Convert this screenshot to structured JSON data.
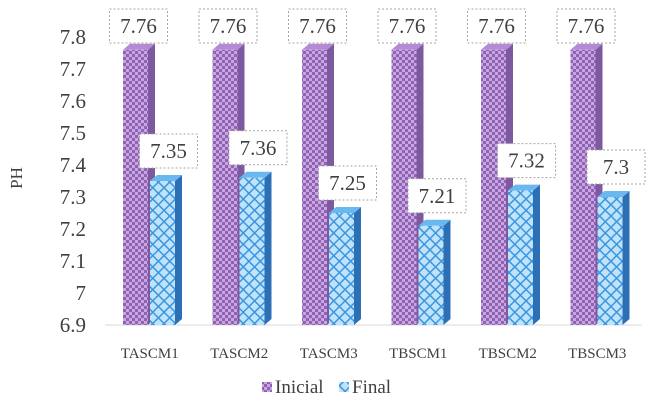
{
  "chart_data": {
    "type": "bar",
    "title": "",
    "xlabel": "",
    "ylabel": "PH",
    "ylim": [
      6.9,
      7.8
    ],
    "yticks": [
      "6.9",
      "7",
      "7.1",
      "7.2",
      "7.3",
      "7.4",
      "7.5",
      "7.6",
      "7.7",
      "7.8"
    ],
    "categories": [
      "TASCM1",
      "TASCM2",
      "TASCM3",
      "TBSCM1",
      "TBSCM2",
      "TBSCM3"
    ],
    "series": [
      {
        "name": "Inicial",
        "values": [
          7.76,
          7.76,
          7.76,
          7.76,
          7.76,
          7.76
        ],
        "labels": [
          "7.76",
          "7.76",
          "7.76",
          "7.76",
          "7.76",
          "7.76"
        ]
      },
      {
        "name": "Final",
        "values": [
          7.35,
          7.36,
          7.25,
          7.21,
          7.32,
          7.3
        ],
        "labels": [
          "7.35",
          "7.36",
          "7.25",
          "7.21",
          "7.32",
          "7.3"
        ]
      }
    ],
    "grid": false,
    "legend": "bottom",
    "style": "3d-column",
    "colors": {
      "inicial_fill": "#b48ad2",
      "inicial_dark": "#7d5aa0",
      "final_fill": "#6ab8f0",
      "final_dark": "#2c6fb5"
    }
  }
}
